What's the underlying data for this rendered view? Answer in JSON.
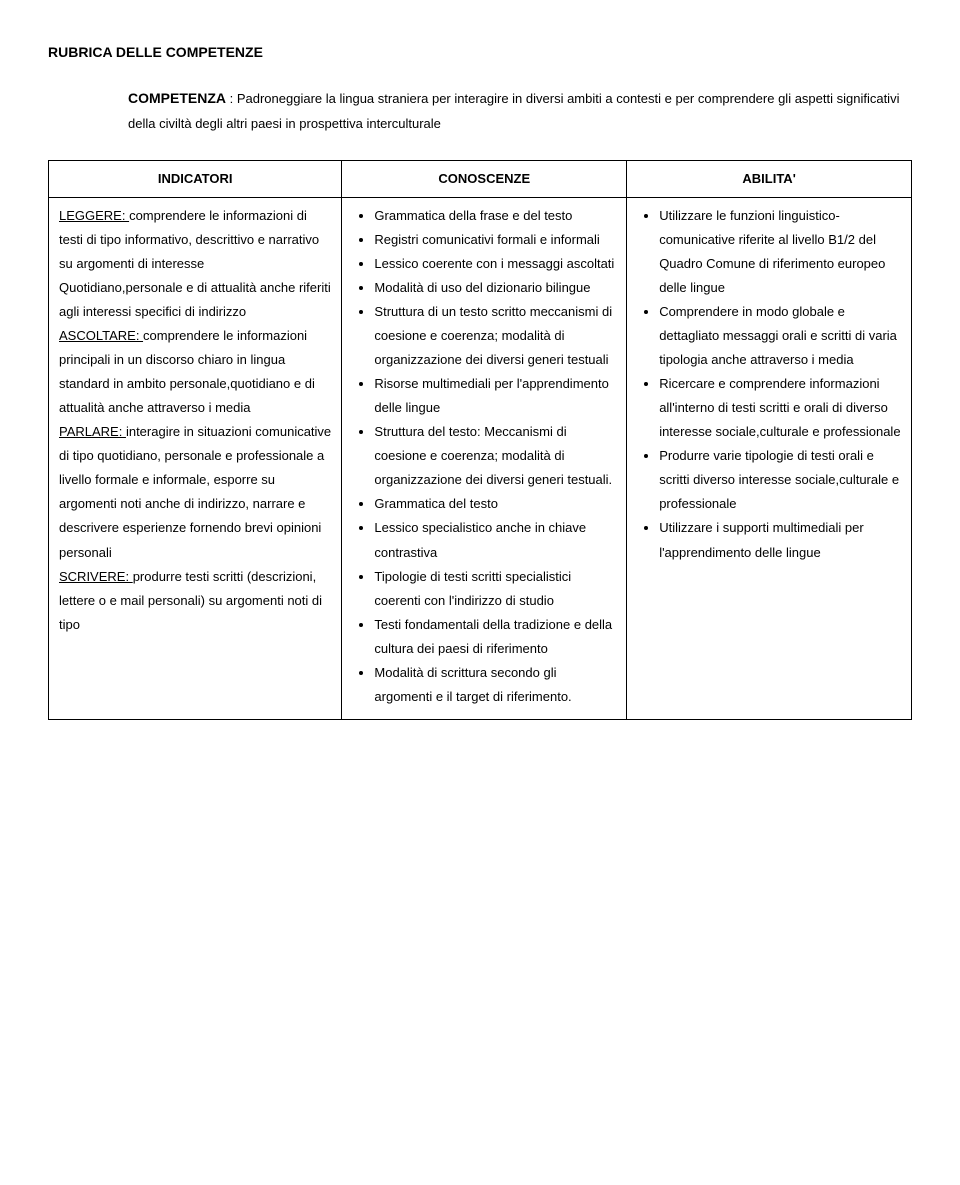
{
  "title": "RUBRICA DELLE COMPETENZE",
  "subtitle_label": "COMPETENZA",
  "subtitle_text": " : Padroneggiare la lingua straniera per interagire in diversi ambiti a contesti e per comprendere gli aspetti significativi della civiltà degli altri paesi in prospettiva interculturale",
  "headers": {
    "left": "INDICATORI",
    "mid": "CONOSCENZE",
    "right": "ABILITA'"
  },
  "left": {
    "leggere_u": "LEGGERE: ",
    "leggere_t": "comprendere le informazioni di testi di tipo informativo, descrittivo e narrativo su argomenti di interesse Quotidiano,personale e di attualità anche riferiti agli interessi specifici di indirizzo",
    "ascoltare_u": "ASCOLTARE: ",
    "ascoltare_t": "comprendere le informazioni principali in un discorso chiaro in lingua standard in ambito personale,quotidiano e di attualità anche attraverso i media",
    "parlare_u": "PARLARE: ",
    "parlare_t": "interagire in situazioni comunicative di tipo quotidiano, personale e professionale a livello formale e informale, esporre su argomenti noti anche di indirizzo, narrare e descrivere esperienze fornendo brevi opinioni personali",
    "scrivere_u": "SCRIVERE: ",
    "scrivere_t": "produrre testi scritti (descrizioni, lettere o e mail personali) su argomenti noti di tipo"
  },
  "mid": [
    "Grammatica della frase e del testo",
    "Registri comunicativi formali e informali",
    "Lessico coerente con i messaggi ascoltati",
    "Modalità di uso del dizionario bilingue",
    "Struttura di un testo scritto meccanismi di coesione e coerenza; modalità di organizzazione dei diversi generi testuali",
    "Risorse multimediali per l'apprendimento delle lingue",
    "Struttura del testo: Meccanismi di coesione e coerenza; modalità di organizzazione dei diversi generi testuali.",
    "Grammatica del testo",
    "Lessico specialistico anche in chiave contrastiva",
    "Tipologie di testi scritti specialistici coerenti con l'indirizzo di studio",
    "Testi fondamentali della tradizione e della cultura dei paesi di riferimento",
    "Modalità di scrittura secondo gli argomenti e il target di riferimento."
  ],
  "right": [
    "Utilizzare le funzioni linguistico- comunicative riferite al livello B1/2 del Quadro Comune di riferimento europeo delle lingue",
    "Comprendere in modo globale e dettagliato messaggi orali e scritti di varia tipologia anche attraverso i media",
    "Ricercare e comprendere informazioni all'interno di testi scritti e orali di diverso interesse sociale,culturale e professionale",
    "Produrre varie tipologie di testi orali e scritti diverso interesse sociale,culturale e professionale",
    "Utilizzare i supporti multimediali per l'apprendimento delle lingue"
  ]
}
